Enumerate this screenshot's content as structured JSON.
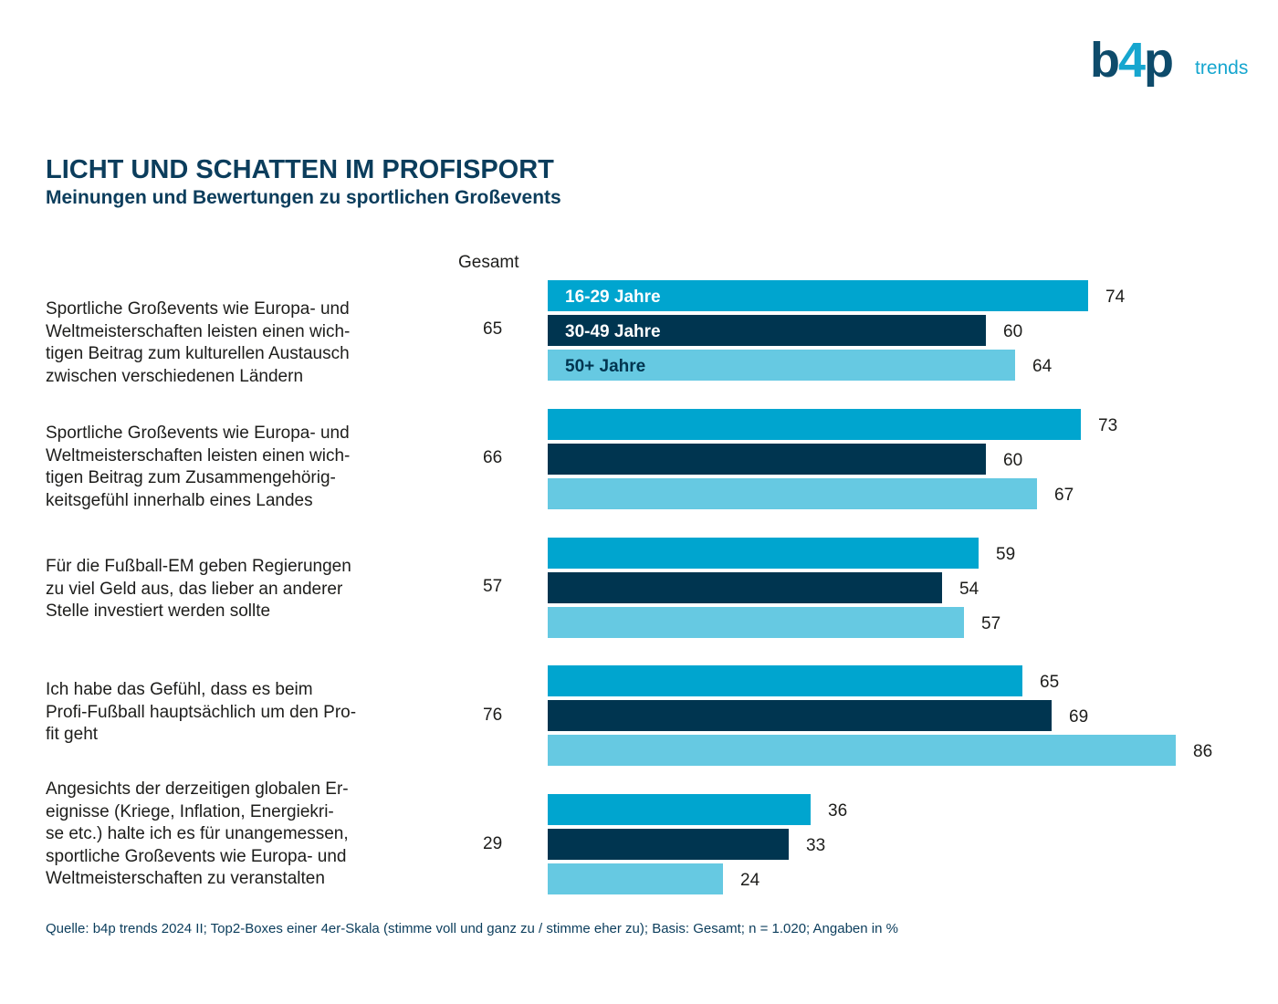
{
  "logo": {
    "main_b": "b",
    "main_4": "4",
    "main_p": "p",
    "sub": "trends"
  },
  "header": {
    "title": "LICHT UND SCHATTEN IM PROFISPORT",
    "subtitle": "Meinungen und Bewertungen zu sportlichen Großevents"
  },
  "colors": {
    "series1": "#00a5cf",
    "series2": "#003550",
    "series3": "#66c9e2"
  },
  "chart_data": {
    "type": "bar",
    "orientation": "horizontal",
    "total_header": "Gesamt",
    "categories": [
      "Sportliche Großevents wie Europa- und\nWeltmeisterschaften leisten einen wich-\ntigen Beitrag zum kulturellen Austausch\nzwischen verschiedenen Ländern",
      "Sportliche Großevents wie Europa- und\nWeltmeisterschaften leisten einen wich-\ntigen Beitrag zum Zusammengehörig-\nkeitsgefühl innerhalb eines Landes",
      "Für die Fußball-EM geben Regierungen\nzu viel Geld aus, das lieber an anderer\nStelle investiert werden sollte",
      "Ich habe das Gefühl, dass es beim\nProfi-Fußball hauptsächlich um den Pro-\nfit geht",
      "Angesichts der derzeitigen globalen Er-\neignisse (Kriege, Inflation, Energiekri-\nse etc.) halte ich es für unangemessen,\nsportliche Großevents wie Europa- und\nWeltmeisterschaften zu veranstalten"
    ],
    "totals": [
      "65",
      "66",
      "57",
      "76",
      "29"
    ],
    "series": [
      {
        "name": "16-29 Jahre",
        "values": [
          74,
          73,
          59,
          65,
          36
        ]
      },
      {
        "name": "30-49 Jahre",
        "values": [
          60,
          60,
          54,
          69,
          33
        ]
      },
      {
        "name": "50+ Jahre",
        "values": [
          64,
          67,
          57,
          86,
          24
        ]
      }
    ],
    "xlim": [
      0,
      100
    ],
    "legend": "inside-first-bars"
  },
  "footer": {
    "source": "Quelle: b4p trends 2024 II; Top2-Boxes einer 4er-Skala (stimme voll und ganz zu / stimme eher zu); Basis: Gesamt; n = 1.020; Angaben in %"
  }
}
